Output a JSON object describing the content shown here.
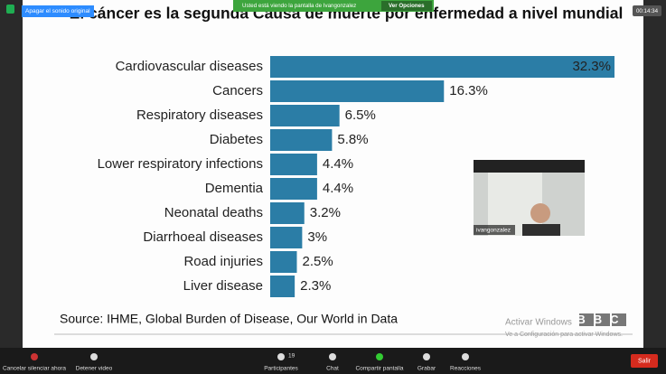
{
  "zoom": {
    "unmute_original": "Apagar el sonido original",
    "banner": "Usted está viendo la pantalla de Ivangonzalez",
    "view_options": "Ver Opciones",
    "time": "00:14:34",
    "participant_name": "ivangonzalez",
    "toolbar": {
      "mute": "Cancelar silenciar ahora",
      "video": "Detener video",
      "participants_count": "19",
      "participants": "Participantes",
      "chat": "Chat",
      "share": "Compartir pantalla",
      "record": "Grabar",
      "reactions": "Reacciones",
      "leave": "Salir"
    }
  },
  "chart_data": {
    "type": "bar",
    "orientation": "horizontal",
    "title": "El cáncer es la segunda Causa de muerte por enfermedad a nivel mundial",
    "categories": [
      "Cardiovascular diseases",
      "Cancers",
      "Respiratory diseases",
      "Diabetes",
      "Lower respiratory infections",
      "Dementia",
      "Neonatal deaths",
      "Diarrhoeal diseases",
      "Road injuries",
      "Liver disease"
    ],
    "values": [
      32.3,
      16.3,
      6.5,
      5.8,
      4.4,
      4.4,
      3.2,
      3,
      2.5,
      2.3
    ],
    "value_labels": [
      "32.3%",
      "16.3%",
      "6.5%",
      "5.8%",
      "4.4%",
      "4.4%",
      "3.2%",
      "3%",
      "2.5%",
      "2.3%"
    ],
    "color": "#2b7da6",
    "source": "Source: IHME, Global Burden of Disease, Our World in Data",
    "logo": "BBC"
  },
  "watermark": {
    "title": "Activar Windows",
    "text": "Ve a Configuración para activar Windows."
  }
}
